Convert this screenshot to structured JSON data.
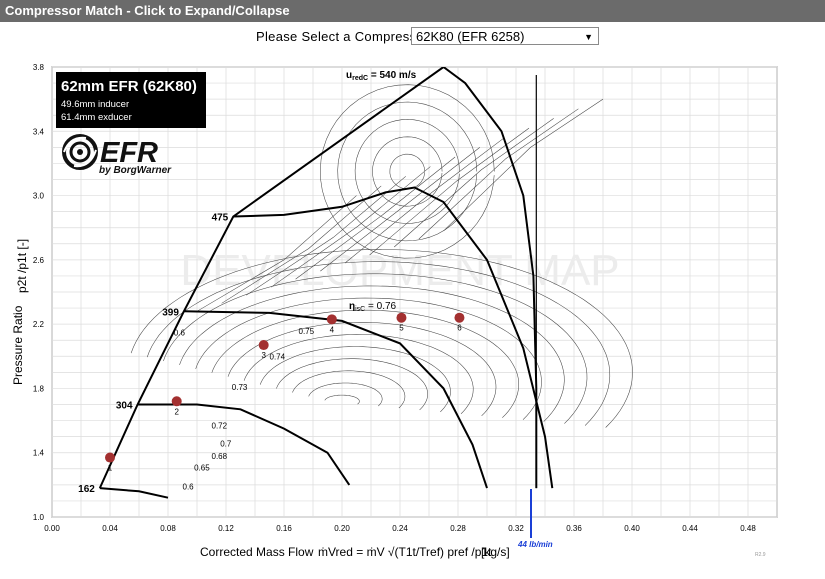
{
  "header": {
    "title": "Compressor Match - Click to Expand/Collapse"
  },
  "selector": {
    "label": "Please Select a Compressor",
    "value": "62K80 (EFR 6258)"
  },
  "badge": {
    "title": "62mm EFR  (62K80)",
    "line1": "49.6mm inducer",
    "line2": "61.4mm exducer",
    "logo": "EFR",
    "logo_sub": "by BorgWarner"
  },
  "watermark": "DEVELOPMENT MAP",
  "version": "R2.9",
  "annotations": {
    "speed_line_label": "u",
    "speed_line_sub": "redC",
    "speed_line_value": " = 540 m/s",
    "eff_label": "η",
    "eff_sub": "isC",
    "eff_value": " = 0.76",
    "flow_marker": "44 lb/min"
  },
  "chart_data": {
    "type": "scatter",
    "xlabel": "Corrected Mass Flow",
    "xlabel_formula": "ṁVred = ṁV √(T1t/Tref) pref /p1t",
    "xlabel_unit": "[kg/s]",
    "ylabel": "Pressure Ratio",
    "ylabel_formula": "p2t /p1t [-]",
    "xlim": [
      0.0,
      0.5
    ],
    "ylim": [
      1.0,
      3.8
    ],
    "xticks": [
      "0.00",
      "0.04",
      "0.08",
      "0.12",
      "0.16",
      "0.20",
      "0.24",
      "0.28",
      "0.32",
      "0.36",
      "0.40",
      "0.44",
      "0.48"
    ],
    "yticks": [
      "1.0",
      "1.4",
      "1.8",
      "2.2",
      "2.6",
      "3.0",
      "3.4",
      "3.8"
    ],
    "grid": true,
    "operating_points": [
      {
        "label": "1",
        "x": 0.04,
        "y": 1.37
      },
      {
        "label": "2",
        "x": 0.086,
        "y": 1.72
      },
      {
        "label": "3",
        "x": 0.146,
        "y": 2.07
      },
      {
        "label": "4",
        "x": 0.193,
        "y": 2.23
      },
      {
        "label": "5",
        "x": 0.241,
        "y": 2.24
      },
      {
        "label": "6",
        "x": 0.281,
        "y": 2.24
      }
    ],
    "speed_lines": [
      {
        "label": "162",
        "points": [
          [
            0.033,
            1.18
          ],
          [
            0.06,
            1.16
          ],
          [
            0.08,
            1.12
          ]
        ]
      },
      {
        "label": "304",
        "points": [
          [
            0.059,
            1.7
          ],
          [
            0.1,
            1.7
          ],
          [
            0.13,
            1.67
          ],
          [
            0.16,
            1.55
          ],
          [
            0.19,
            1.4
          ],
          [
            0.205,
            1.2
          ]
        ]
      },
      {
        "label": "399",
        "points": [
          [
            0.091,
            2.28
          ],
          [
            0.15,
            2.27
          ],
          [
            0.2,
            2.22
          ],
          [
            0.24,
            2.08
          ],
          [
            0.27,
            1.8
          ],
          [
            0.29,
            1.45
          ],
          [
            0.3,
            1.18
          ]
        ]
      },
      {
        "label": "475",
        "points": [
          [
            0.125,
            2.87
          ],
          [
            0.16,
            2.88
          ],
          [
            0.2,
            2.93
          ],
          [
            0.23,
            3.02
          ],
          [
            0.25,
            3.05
          ],
          [
            0.27,
            2.96
          ],
          [
            0.3,
            2.6
          ],
          [
            0.325,
            2.05
          ],
          [
            0.34,
            1.5
          ],
          [
            0.345,
            1.18
          ]
        ]
      },
      {
        "label": "",
        "points": [
          [
            0.27,
            3.8
          ],
          [
            0.285,
            3.7
          ],
          [
            0.31,
            3.4
          ],
          [
            0.325,
            3.0
          ],
          [
            0.332,
            2.5
          ],
          [
            0.334,
            1.8
          ],
          [
            0.334,
            1.18
          ]
        ]
      }
    ],
    "surge_line": [
      [
        0.033,
        1.18
      ],
      [
        0.059,
        1.7
      ],
      [
        0.091,
        2.28
      ],
      [
        0.125,
        2.87
      ],
      [
        0.27,
        3.8
      ]
    ],
    "choke_ref": {
      "x": 0.334,
      "y_top": 1.18
    },
    "efficiency_labels": [
      {
        "text": "0.6",
        "x": 0.084,
        "y": 2.13
      },
      {
        "text": "0.75",
        "x": 0.17,
        "y": 2.14
      },
      {
        "text": "0.74",
        "x": 0.15,
        "y": 1.98
      },
      {
        "text": "0.73",
        "x": 0.124,
        "y": 1.79
      },
      {
        "text": "0.72",
        "x": 0.11,
        "y": 1.55
      },
      {
        "text": "0.7",
        "x": 0.116,
        "y": 1.44
      },
      {
        "text": "0.68",
        "x": 0.11,
        "y": 1.36
      },
      {
        "text": "0.65",
        "x": 0.098,
        "y": 1.29
      },
      {
        "text": "0.6",
        "x": 0.09,
        "y": 1.17
      }
    ]
  }
}
